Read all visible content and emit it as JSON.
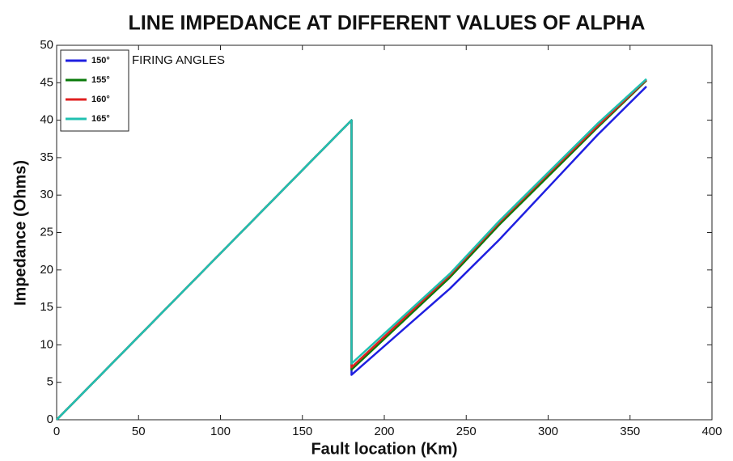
{
  "chart_data": {
    "type": "line",
    "title": "LINE IMPEDANCE AT DIFFERENT VALUES OF ALPHA",
    "x_label": "Fault location (Km)",
    "y_label": "Impedance (Ohms)",
    "annotation": "FIRING ANGLES",
    "x": [
      0,
      180,
      180,
      240,
      270,
      300,
      330,
      360
    ],
    "series": [
      {
        "name": "150°",
        "color": "#1f1fe0",
        "values": [
          0,
          40,
          6,
          17.5,
          24,
          31,
          38,
          44.5
        ]
      },
      {
        "name": "155°",
        "color": "#0a7a0a",
        "values": [
          0,
          40,
          6.7,
          19,
          26,
          32.5,
          39,
          45.3
        ]
      },
      {
        "name": "160°",
        "color": "#e02020",
        "values": [
          0,
          40,
          7,
          19.3,
          26.3,
          32.8,
          39.2,
          45.4
        ]
      },
      {
        "name": "165°",
        "color": "#20c0b0",
        "values": [
          0,
          40,
          7.5,
          19.5,
          26.5,
          33,
          39.5,
          45.5
        ]
      }
    ],
    "xlim": [
      0,
      400
    ],
    "xticks": [
      0,
      50,
      100,
      150,
      200,
      250,
      300,
      350,
      400
    ],
    "ylim": [
      0,
      50
    ],
    "yticks": [
      0,
      5,
      10,
      15,
      20,
      25,
      30,
      35,
      40,
      45,
      50
    ],
    "grid": false,
    "legend": "upper left"
  }
}
